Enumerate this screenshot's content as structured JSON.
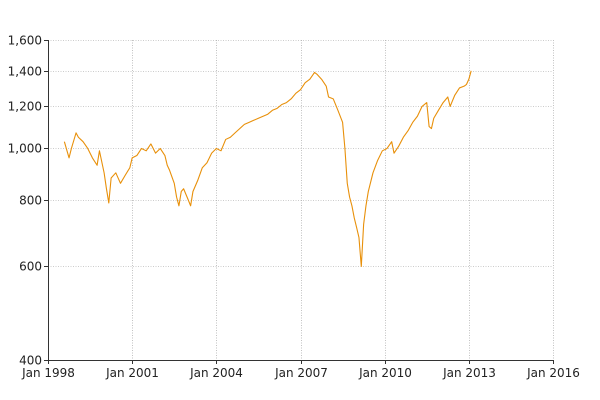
{
  "chart_data": {
    "type": "line",
    "title": "",
    "xlabel": "",
    "ylabel": "",
    "y_scale": "log",
    "ylim": [
      400,
      1600
    ],
    "xlim": [
      "1998-01",
      "2016-01"
    ],
    "grid": true,
    "legend": "none",
    "colors": {
      "series": "#E8900A",
      "grid": "#9A9A9A",
      "axis": "#333333"
    },
    "y_ticks": [
      {
        "value": 400,
        "label": "400"
      },
      {
        "value": 600,
        "label": "600"
      },
      {
        "value": 800,
        "label": "800"
      },
      {
        "value": 1000,
        "label": "1,000"
      },
      {
        "value": 1200,
        "label": "1,200"
      },
      {
        "value": 1400,
        "label": "1,400"
      },
      {
        "value": 1600,
        "label": "1,600"
      }
    ],
    "x_ticks": [
      {
        "value": "1998-01",
        "label": "Jan 1998"
      },
      {
        "value": "2001-01",
        "label": "Jan 2001"
      },
      {
        "value": "2004-01",
        "label": "Jan 2004"
      },
      {
        "value": "2007-01",
        "label": "Jan 2007"
      },
      {
        "value": "2010-01",
        "label": "Jan 2010"
      },
      {
        "value": "2013-01",
        "label": "Jan 2013"
      },
      {
        "value": "2016-01",
        "label": "Jan 2016"
      }
    ],
    "series": [
      {
        "x": [
          "1998-08",
          "1998-10",
          "1998-11",
          "1999-01",
          "1999-02",
          "1999-04",
          "1999-06",
          "1999-08",
          "1999-10",
          "1999-11",
          "2000-01",
          "2000-02",
          "2000-03",
          "2000-04",
          "2000-06",
          "2000-08",
          "2000-10",
          "2000-12",
          "2001-01",
          "2001-03",
          "2001-05",
          "2001-07",
          "2001-09",
          "2001-11",
          "2002-01",
          "2002-03",
          "2002-04",
          "2002-05",
          "2002-07",
          "2002-08",
          "2002-09",
          "2002-10",
          "2002-11",
          "2003-01",
          "2003-02",
          "2003-03",
          "2003-05",
          "2003-07",
          "2003-09",
          "2003-11",
          "2004-01",
          "2004-03",
          "2004-05",
          "2004-07",
          "2004-09",
          "2004-11",
          "2005-01",
          "2005-03",
          "2005-05",
          "2005-07",
          "2005-09",
          "2005-11",
          "2006-01",
          "2006-03",
          "2006-05",
          "2006-07",
          "2006-09",
          "2006-11",
          "2007-01",
          "2007-03",
          "2007-05",
          "2007-07",
          "2007-08",
          "2007-10",
          "2007-12",
          "2008-01",
          "2008-03",
          "2008-05",
          "2008-07",
          "2008-08",
          "2008-09",
          "2008-10",
          "2008-11",
          "2008-12",
          "2009-01",
          "2009-02",
          "2009-03",
          "2009-04",
          "2009-05",
          "2009-06",
          "2009-08",
          "2009-10",
          "2009-12",
          "2010-02",
          "2010-04",
          "2010-05",
          "2010-07",
          "2010-09",
          "2010-11",
          "2011-01",
          "2011-03",
          "2011-05",
          "2011-07",
          "2011-08",
          "2011-09",
          "2011-10",
          "2011-12",
          "2012-02",
          "2012-04",
          "2012-05",
          "2012-07",
          "2012-09",
          "2012-11",
          "2012-12",
          "2013-01",
          "2013-02"
        ],
        "y": [
          1030,
          960,
          1000,
          1070,
          1050,
          1030,
          1000,
          960,
          930,
          990,
          900,
          840,
          790,
          880,
          900,
          860,
          890,
          920,
          960,
          970,
          1000,
          990,
          1020,
          980,
          1000,
          970,
          930,
          910,
          860,
          810,
          780,
          830,
          840,
          800,
          780,
          830,
          870,
          920,
          940,
          980,
          1000,
          990,
          1040,
          1050,
          1070,
          1090,
          1110,
          1120,
          1130,
          1140,
          1150,
          1160,
          1180,
          1190,
          1210,
          1220,
          1240,
          1270,
          1290,
          1330,
          1350,
          1390,
          1380,
          1350,
          1310,
          1250,
          1240,
          1180,
          1120,
          1000,
          860,
          810,
          780,
          740,
          710,
          680,
          600,
          720,
          780,
          830,
          900,
          950,
          990,
          1000,
          1030,
          980,
          1010,
          1050,
          1080,
          1120,
          1150,
          1200,
          1220,
          1100,
          1090,
          1140,
          1180,
          1220,
          1250,
          1200,
          1260,
          1300,
          1310,
          1320,
          1350,
          1400
        ]
      }
    ]
  }
}
